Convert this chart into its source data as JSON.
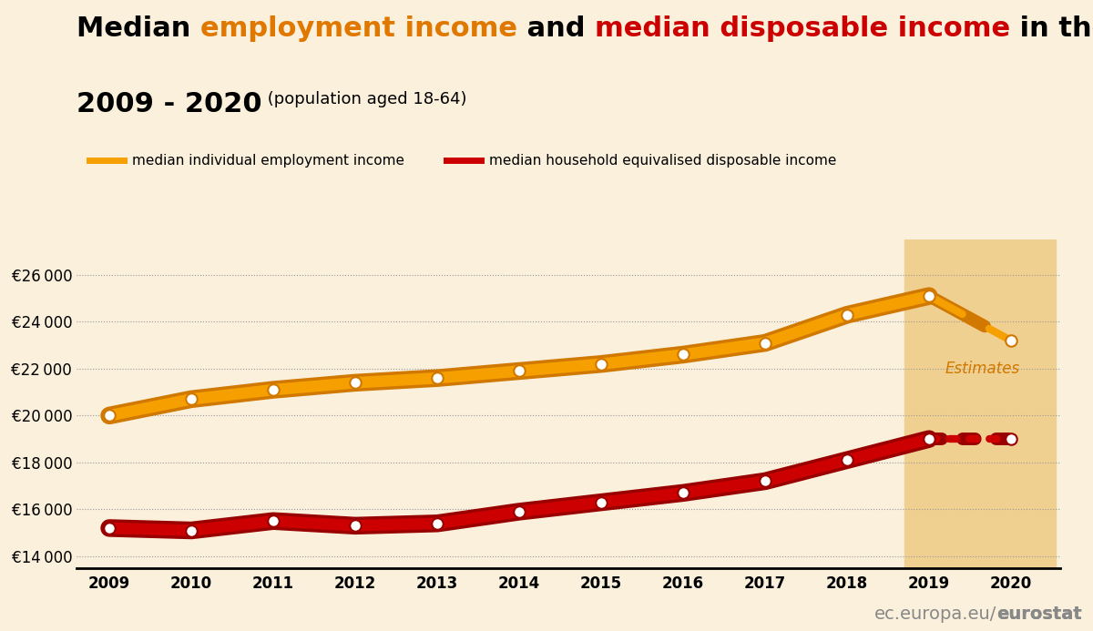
{
  "years": [
    2009,
    2010,
    2011,
    2012,
    2013,
    2014,
    2015,
    2016,
    2017,
    2018,
    2019,
    2020
  ],
  "employment_income": [
    20000,
    20700,
    21100,
    21400,
    21600,
    21900,
    22200,
    22600,
    23100,
    24300,
    25100,
    23200
  ],
  "disposable_income": [
    15200,
    15100,
    15500,
    15300,
    15400,
    15900,
    16300,
    16700,
    17200,
    18100,
    19000,
    19000
  ],
  "orange_color": "#F5A000",
  "dark_orange_color": "#D07800",
  "red_color": "#CC0000",
  "dark_red_color": "#990000",
  "background_color": "#FAF0DC",
  "estimate_bg_color": "#F0D090",
  "grid_color": "#999999",
  "ylim": [
    13500,
    27500
  ],
  "yticks": [
    14000,
    16000,
    18000,
    20000,
    22000,
    24000,
    26000
  ],
  "legend_orange": "median individual employment income",
  "legend_red": "median household equivalised disposable income",
  "estimates_label": "Estimates",
  "watermark_regular": "ec.europa.eu/",
  "watermark_bold": "eurostat"
}
